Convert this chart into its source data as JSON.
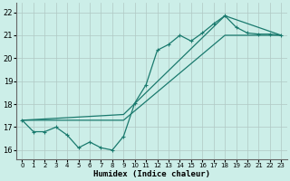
{
  "xlabel": "Humidex (Indice chaleur)",
  "background_color": "#cceee8",
  "grid_color": "#b0c8c4",
  "line_color": "#1a7a6e",
  "xlim": [
    -0.5,
    23.5
  ],
  "ylim": [
    15.6,
    22.4
  ],
  "xticks": [
    0,
    1,
    2,
    3,
    4,
    5,
    6,
    7,
    8,
    9,
    10,
    11,
    12,
    13,
    14,
    15,
    16,
    17,
    18,
    19,
    20,
    21,
    22,
    23
  ],
  "yticks": [
    16,
    17,
    18,
    19,
    20,
    21,
    22
  ],
  "series1_x": [
    0,
    1,
    2,
    3,
    4,
    5,
    6,
    7,
    8,
    9,
    10,
    11,
    12,
    13,
    14,
    15,
    16,
    17,
    18,
    19,
    20,
    21,
    22,
    23
  ],
  "series1_y": [
    17.3,
    16.8,
    16.8,
    17.0,
    16.65,
    16.1,
    16.35,
    16.1,
    16.0,
    16.6,
    18.05,
    18.85,
    20.35,
    20.6,
    21.0,
    20.75,
    21.1,
    21.5,
    21.85,
    21.35,
    21.1,
    21.05,
    21.05,
    21.0
  ],
  "series2_x": [
    0,
    9,
    18,
    23
  ],
  "series2_y": [
    17.3,
    17.55,
    21.85,
    21.0
  ],
  "series3_x": [
    0,
    9,
    18,
    23
  ],
  "series3_y": [
    17.3,
    17.3,
    21.0,
    21.0
  ]
}
